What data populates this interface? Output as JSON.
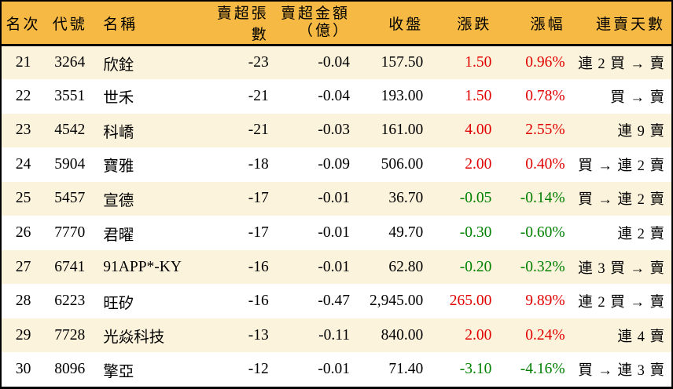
{
  "colors": {
    "header_bg": "#F5B944",
    "row_alt_bg": "#FCF3DC",
    "row_bg": "#FFFFFF",
    "up_text": "#E00000",
    "down_text": "#008000",
    "text": "#000000",
    "border": "#000000"
  },
  "table": {
    "title": "institutional-net-sell-ranking",
    "columns": [
      {
        "key": "rank",
        "label": "名次"
      },
      {
        "key": "code",
        "label": "代號"
      },
      {
        "key": "name",
        "label": "名稱"
      },
      {
        "key": "volume",
        "label": "賣超張數"
      },
      {
        "key": "amount",
        "label": "賣超金額",
        "sublabel": "（億）"
      },
      {
        "key": "close",
        "label": "收盤"
      },
      {
        "key": "change",
        "label": "漲跌"
      },
      {
        "key": "change_pct",
        "label": "漲幅"
      },
      {
        "key": "streak",
        "label": "連賣天數"
      }
    ],
    "rows": [
      {
        "rank": "21",
        "code": "3264",
        "name": "欣銓",
        "volume": "-23",
        "amount": "-0.04",
        "close": "157.50",
        "change": "1.50",
        "change_pct": "0.96%",
        "streak": "連 2 買 → 賣",
        "trend": "up"
      },
      {
        "rank": "22",
        "code": "3551",
        "name": "世禾",
        "volume": "-21",
        "amount": "-0.04",
        "close": "193.00",
        "change": "1.50",
        "change_pct": "0.78%",
        "streak": "買 → 賣",
        "trend": "up"
      },
      {
        "rank": "23",
        "code": "4542",
        "name": "科嶠",
        "volume": "-21",
        "amount": "-0.03",
        "close": "161.00",
        "change": "4.00",
        "change_pct": "2.55%",
        "streak": "連 9 賣",
        "trend": "up"
      },
      {
        "rank": "24",
        "code": "5904",
        "name": "寶雅",
        "volume": "-18",
        "amount": "-0.09",
        "close": "506.00",
        "change": "2.00",
        "change_pct": "0.40%",
        "streak": "買 → 連 2 賣",
        "trend": "up"
      },
      {
        "rank": "25",
        "code": "5457",
        "name": "宣德",
        "volume": "-17",
        "amount": "-0.01",
        "close": "36.70",
        "change": "-0.05",
        "change_pct": "-0.14%",
        "streak": "買 → 連 2 賣",
        "trend": "down"
      },
      {
        "rank": "26",
        "code": "7770",
        "name": "君曜",
        "volume": "-17",
        "amount": "-0.01",
        "close": "49.70",
        "change": "-0.30",
        "change_pct": "-0.60%",
        "streak": "連 2 賣",
        "trend": "down"
      },
      {
        "rank": "27",
        "code": "6741",
        "name": "91APP*-KY",
        "volume": "-16",
        "amount": "-0.01",
        "close": "62.80",
        "change": "-0.20",
        "change_pct": "-0.32%",
        "streak": "連 3 買 → 賣",
        "trend": "down"
      },
      {
        "rank": "28",
        "code": "6223",
        "name": "旺矽",
        "volume": "-16",
        "amount": "-0.47",
        "close": "2,945.00",
        "change": "265.00",
        "change_pct": "9.89%",
        "streak": "連 2 買 → 賣",
        "trend": "up"
      },
      {
        "rank": "29",
        "code": "7728",
        "name": "光焱科技",
        "volume": "-13",
        "amount": "-0.11",
        "close": "840.00",
        "change": "2.00",
        "change_pct": "0.24%",
        "streak": "連 4 賣",
        "trend": "up"
      },
      {
        "rank": "30",
        "code": "8096",
        "name": "擎亞",
        "volume": "-12",
        "amount": "-0.01",
        "close": "71.40",
        "change": "-3.10",
        "change_pct": "-4.16%",
        "streak": "買 → 連 3 賣",
        "trend": "down"
      }
    ]
  }
}
